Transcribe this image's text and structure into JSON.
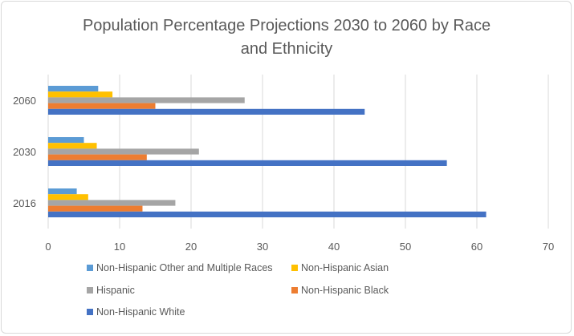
{
  "chart_data": {
    "type": "bar",
    "orientation": "horizontal",
    "title_lines": [
      "Population Percentage Projections 2030 to 2060 by Race",
      "and Ethnicity"
    ],
    "categories": [
      "2016",
      "2030",
      "2060"
    ],
    "series": [
      {
        "name": "Non-Hispanic Other and Multiple Races",
        "color": "#5b9bd5",
        "values": [
          4.0,
          5.0,
          7.0
        ]
      },
      {
        "name": "Non-Hispanic Asian",
        "color": "#ffc000",
        "values": [
          5.6,
          6.8,
          9.0
        ]
      },
      {
        "name": "Hispanic",
        "color": "#a5a5a5",
        "values": [
          17.8,
          21.1,
          27.5
        ]
      },
      {
        "name": "Non-Hispanic Black",
        "color": "#ed7d31",
        "values": [
          13.2,
          13.8,
          15.0
        ]
      },
      {
        "name": "Non-Hispanic White",
        "color": "#4472c4",
        "values": [
          61.3,
          55.8,
          44.3
        ]
      }
    ],
    "xticks": [
      0,
      10,
      20,
      30,
      40,
      50,
      60,
      70
    ],
    "xlim": [
      0,
      70
    ],
    "xlabel": "",
    "ylabel": "",
    "grid": true,
    "legend_position": "bottom"
  }
}
